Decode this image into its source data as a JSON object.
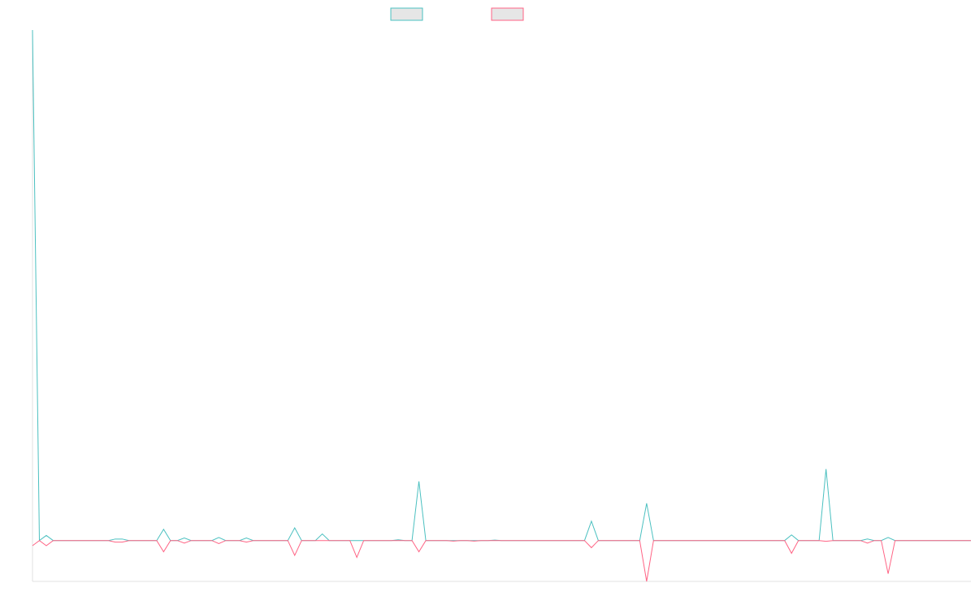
{
  "chart_data": {
    "type": "line",
    "categories": [
      null,
      null,
      null,
      null,
      null,
      null,
      null,
      null,
      null,
      null,
      null,
      null,
      null,
      null,
      null,
      null,
      null,
      null,
      null,
      null,
      null,
      null,
      null,
      null,
      null,
      null,
      null,
      null,
      null,
      null,
      null,
      null,
      null,
      null,
      null,
      null,
      null,
      null,
      null,
      null,
      null,
      null,
      null,
      null,
      null,
      null,
      null,
      null,
      null,
      null,
      null,
      null,
      null,
      null,
      null,
      null,
      null,
      null,
      null,
      null,
      null,
      null,
      null,
      null,
      null,
      null,
      null,
      null,
      null,
      null,
      null,
      null,
      null,
      null,
      null,
      null,
      null,
      null,
      null,
      null,
      null,
      null,
      null,
      null,
      null,
      null,
      null,
      null,
      null,
      null,
      null,
      null,
      null,
      null,
      null,
      null,
      null,
      null,
      null,
      null,
      null,
      null,
      null,
      null,
      null,
      null,
      null,
      null,
      null,
      null,
      null,
      null,
      null,
      null,
      null,
      null,
      null,
      null,
      null,
      null,
      null,
      null,
      null,
      null,
      null,
      null,
      null,
      null,
      null,
      null,
      null,
      null,
      null,
      null,
      null,
      null,
      null
    ],
    "series": [
      {
        "color": "#4bc0c0",
        "values": [
          100,
          0,
          1,
          0,
          0,
          0,
          0,
          0,
          0,
          0,
          0,
          0,
          0.3,
          0.3,
          0,
          0,
          0,
          0,
          0,
          2.2,
          0,
          0,
          0.5,
          0,
          0,
          0,
          0,
          0.6,
          0,
          0,
          0,
          0.5,
          0,
          0,
          0,
          0,
          0,
          0,
          2.5,
          0,
          0,
          0,
          1.3,
          0,
          0,
          0,
          0,
          0,
          0,
          0,
          0,
          0,
          0,
          0.15,
          0,
          0,
          11.6,
          0,
          0,
          0,
          0,
          0,
          0,
          0,
          0,
          0,
          0,
          0.1,
          0,
          0,
          0,
          0,
          0,
          0,
          0,
          0,
          0,
          0,
          0,
          0,
          0,
          3.8,
          0,
          0,
          0,
          0,
          0,
          0,
          0,
          7.3,
          0,
          0,
          0,
          0,
          0,
          0,
          0,
          0,
          0,
          0,
          0,
          0,
          0,
          0,
          0,
          0,
          0,
          0,
          0,
          0,
          1.1,
          0,
          0,
          0,
          0,
          14,
          0,
          0,
          0,
          0,
          0,
          0.3,
          0,
          0,
          0.6,
          0,
          0,
          0,
          0,
          0,
          0,
          0,
          0,
          0,
          0,
          0,
          0
        ]
      },
      {
        "color": "#ff6384",
        "values": [
          -1,
          0,
          -1,
          0,
          0,
          0,
          0,
          0,
          0,
          0,
          0,
          0,
          -0.3,
          -0.3,
          0,
          0,
          0,
          0,
          0,
          -2.2,
          0,
          0,
          -0.5,
          0,
          0,
          0,
          0,
          -0.6,
          0,
          0,
          0,
          -0.3,
          0,
          0,
          0,
          0,
          0,
          0,
          -2.9,
          0,
          0,
          0,
          0,
          0,
          0,
          0,
          0,
          -3.3,
          0,
          0,
          0,
          0,
          0,
          0,
          0,
          0,
          -2.2,
          0,
          0,
          0,
          0,
          -0.1,
          0,
          0,
          -0.1,
          0,
          0,
          0,
          0,
          0,
          0,
          0,
          0,
          0,
          0,
          0,
          0,
          0,
          0,
          0,
          0,
          -1.4,
          0,
          0,
          0,
          0,
          0,
          0,
          0,
          -8,
          0,
          0,
          0,
          0,
          0,
          0,
          0,
          0,
          0,
          0,
          0,
          0,
          0,
          0,
          0,
          0,
          0,
          0,
          0,
          0,
          -2.5,
          0,
          0,
          0,
          0,
          -0.15,
          0,
          0,
          0,
          0,
          0,
          -0.5,
          0,
          0,
          -6.5,
          0,
          0,
          0,
          0,
          0,
          0,
          0,
          0,
          0,
          0,
          0,
          0
        ]
      }
    ],
    "ylim": [
      -8,
      100
    ],
    "legend": "top"
  }
}
